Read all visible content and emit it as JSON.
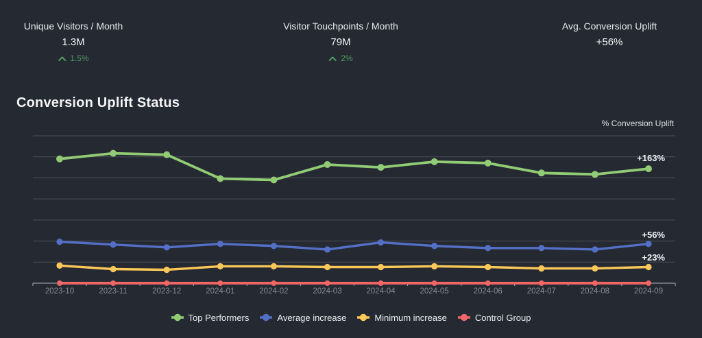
{
  "kpis": [
    {
      "label": "Unique Visitors / Month",
      "value": "1.3M",
      "trend": "1.5%",
      "trend_direction": "up"
    },
    {
      "label": "Visitor Touchpoints / Month",
      "value": "79M",
      "trend": "2%",
      "trend_direction": "up"
    },
    {
      "label": "Avg. Conversion Uplift",
      "value": "+56%",
      "trend": null,
      "trend_direction": null
    }
  ],
  "chart": {
    "title": "Conversion Uplift Status",
    "axis_name": "% Conversion Uplift"
  },
  "chart_data": {
    "type": "line",
    "title": "Conversion Uplift Status",
    "ylabel": "% Conversion Uplift",
    "xlabel": "",
    "categories": [
      "2023-10",
      "2023-11",
      "2023-12",
      "2024-01",
      "2024-02",
      "2024-03",
      "2024-04",
      "2024-05",
      "2024-06",
      "2024-07",
      "2024-08",
      "2024-09"
    ],
    "series": [
      {
        "name": "Top Performers",
        "color": "#91cc75",
        "values": [
          177,
          185,
          183,
          149,
          147,
          169,
          165,
          173,
          171,
          157,
          155,
          163
        ],
        "end_label": "+163%"
      },
      {
        "name": "Average increase",
        "color": "#5470c6",
        "values": [
          59,
          55,
          51,
          56,
          53,
          48,
          58,
          53,
          50,
          50,
          48,
          56
        ],
        "end_label": "+56%"
      },
      {
        "name": "Minimum increase",
        "color": "#fac858",
        "values": [
          25,
          20,
          19,
          24,
          24,
          23,
          23,
          24,
          23,
          21,
          21,
          23
        ],
        "end_label": "+23%"
      },
      {
        "name": "Control Group",
        "color": "#ee6666",
        "values": [
          0,
          0,
          0,
          0,
          0,
          0,
          0,
          0,
          0,
          0,
          0,
          0
        ],
        "end_label": null
      }
    ],
    "ylim": [
      0,
      210
    ],
    "y_grid_step": 30,
    "y_tick_labels_shown": false,
    "grid": true,
    "legend_position": "bottom"
  },
  "icons": {
    "trend_up": "chevron-up"
  },
  "colors": {
    "background": "#252932",
    "gridline": "#4d5058",
    "axis_line": "#aeb0b8",
    "axis_label": "#888b92",
    "trend_positive": "#4f9d5c",
    "text": "#eceef1"
  }
}
